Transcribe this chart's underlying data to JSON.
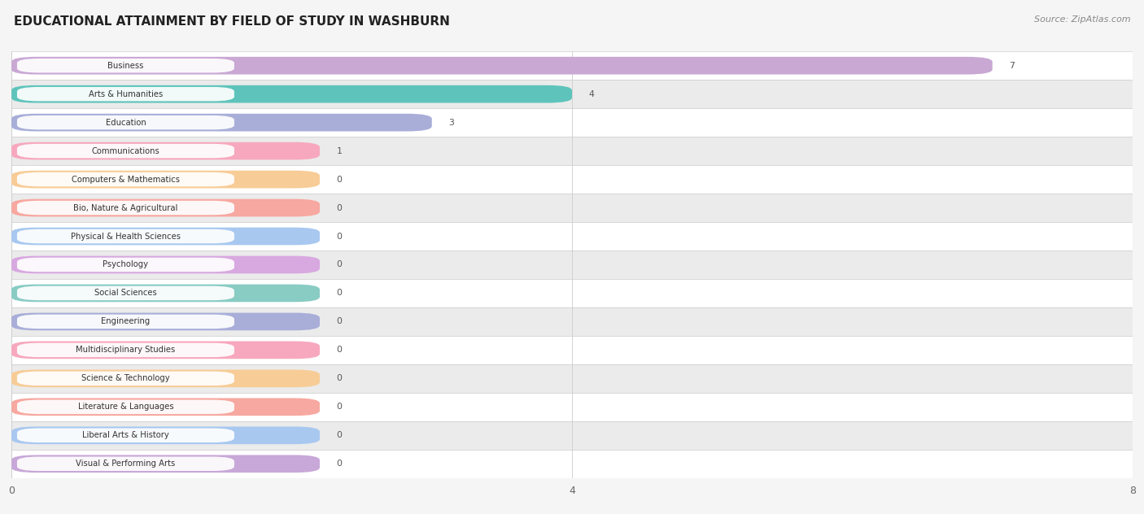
{
  "title": "EDUCATIONAL ATTAINMENT BY FIELD OF STUDY IN WASHBURN",
  "source": "Source: ZipAtlas.com",
  "categories": [
    "Business",
    "Arts & Humanities",
    "Education",
    "Communications",
    "Computers & Mathematics",
    "Bio, Nature & Agricultural",
    "Physical & Health Sciences",
    "Psychology",
    "Social Sciences",
    "Engineering",
    "Multidisciplinary Studies",
    "Science & Technology",
    "Literature & Languages",
    "Liberal Arts & History",
    "Visual & Performing Arts"
  ],
  "values": [
    7,
    4,
    3,
    1,
    0,
    0,
    0,
    0,
    0,
    0,
    0,
    0,
    0,
    0,
    0
  ],
  "bar_colors": [
    "#c9a8d4",
    "#5ec4bb",
    "#a8aed8",
    "#f7a8be",
    "#f7cc96",
    "#f7a8a0",
    "#a8c8f0",
    "#d8a8e0",
    "#88ccc4",
    "#a8aed8",
    "#f7a8be",
    "#f7cc96",
    "#f7a8a0",
    "#a8c8f0",
    "#c8a8d8"
  ],
  "xlim": [
    0,
    8
  ],
  "xticks": [
    0,
    4,
    8
  ],
  "background_color": "#f5f5f5",
  "title_fontsize": 11,
  "source_fontsize": 8,
  "min_bar_width": 2.2
}
